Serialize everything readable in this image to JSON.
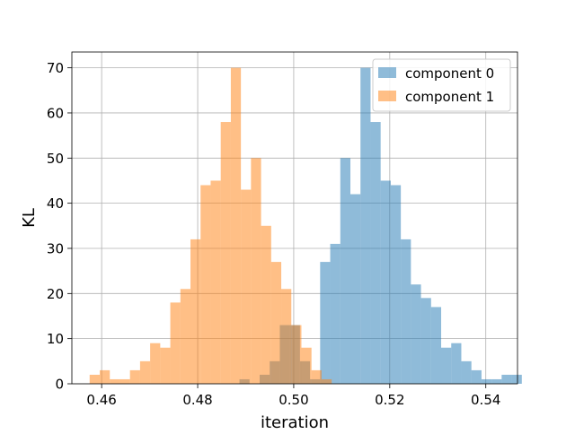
{
  "chart_data": {
    "type": "bar",
    "histogram": true,
    "title": "",
    "xlabel": "iteration",
    "ylabel": "KL",
    "xlim": [
      0.4538,
      0.5466
    ],
    "ylim": [
      0,
      73.5
    ],
    "xticks": [
      0.46,
      0.48,
      0.5,
      0.52,
      0.54
    ],
    "xtick_labels": [
      "0.46",
      "0.48",
      "0.50",
      "0.52",
      "0.54"
    ],
    "yticks": [
      0,
      10,
      20,
      30,
      40,
      50,
      60,
      70
    ],
    "ytick_labels": [
      "0",
      "10",
      "20",
      "30",
      "40",
      "50",
      "60",
      "70"
    ],
    "grid": true,
    "legend_position": "top-right",
    "bin_width": 0.0021,
    "series": [
      {
        "name": "component 0",
        "color": "#1f77b4",
        "opacity": 0.5,
        "bin_start": 0.4887,
        "counts": [
          1,
          0,
          2,
          5,
          13,
          13,
          5,
          1,
          27,
          31,
          50,
          42,
          70,
          58,
          45,
          44,
          32,
          22,
          19,
          17,
          8,
          9,
          5,
          3,
          1,
          1,
          2,
          2
        ]
      },
      {
        "name": "component 1",
        "color": "#ff7f0e",
        "opacity": 0.5,
        "bin_start": 0.4575,
        "counts": [
          2,
          3,
          1,
          1,
          3,
          5,
          9,
          8,
          18,
          21,
          32,
          44,
          45,
          58,
          70,
          43,
          50,
          35,
          27,
          21,
          13,
          8,
          3,
          1
        ]
      }
    ]
  }
}
